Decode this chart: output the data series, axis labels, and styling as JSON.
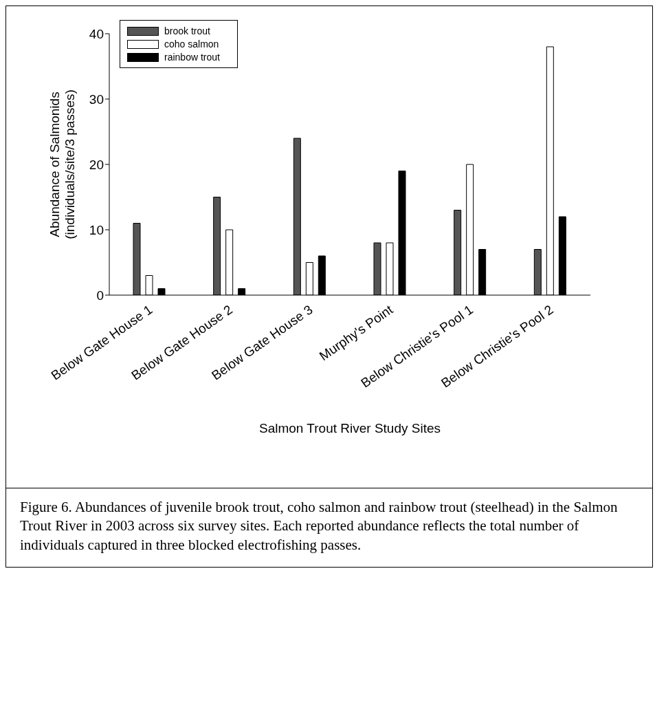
{
  "chart_data": {
    "type": "bar",
    "xlabel": "Salmon Trout River Study Sites",
    "ylabel": "Abundance of Salmonids\n(individuals/site/3 passes)",
    "categories": [
      "Below Gate House 1",
      "Below Gate House 2",
      "Below Gate House 3",
      "Murphy's Point",
      "Below Christie's Pool 1",
      "Below Christie's Pool 2"
    ],
    "series": [
      {
        "name": "brook trout",
        "color": "#555555",
        "values": [
          11,
          15,
          24,
          8,
          13,
          7
        ]
      },
      {
        "name": "coho salmon",
        "color": "#ffffff",
        "values": [
          3,
          10,
          5,
          8,
          20,
          38
        ]
      },
      {
        "name": "rainbow trout",
        "color": "#000000",
        "values": [
          1,
          1,
          6,
          19,
          7,
          12
        ]
      }
    ],
    "ylim": [
      0,
      40
    ],
    "yticks": [
      0,
      10,
      20,
      30,
      40
    ],
    "legend": "top left",
    "annotations": [
      "Figure 6.  Abundances of juvenile brook trout, coho salmon and rainbow trout (steelhead) in the Salmon Trout River in 2003 across six survey sites. Each reported abundance reflects the total number of individuals captured in three blocked electrofishing passes."
    ]
  }
}
